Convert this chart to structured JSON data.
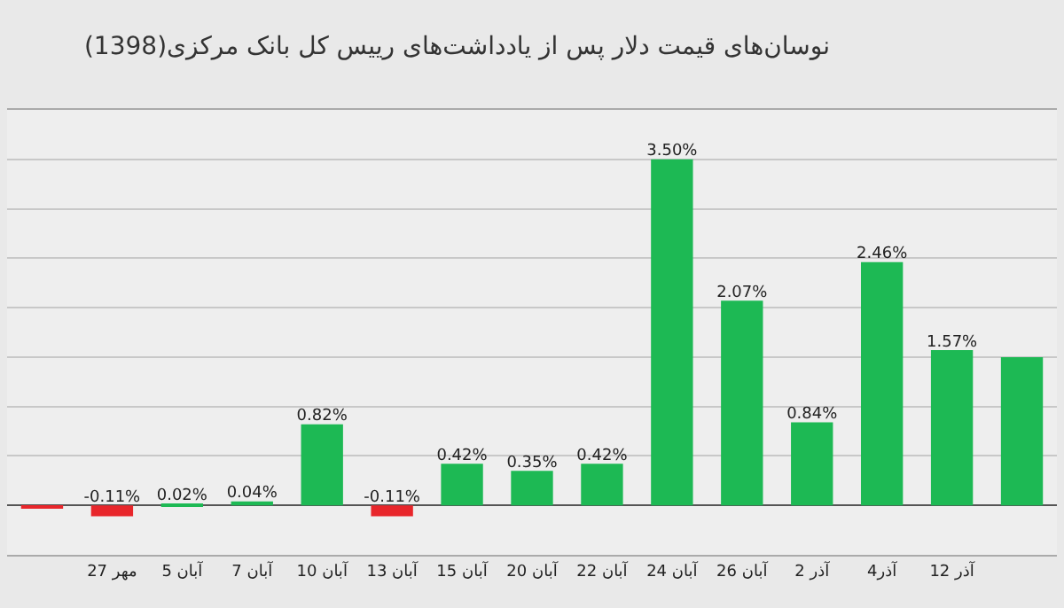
{
  "chart_data": {
    "type": "bar",
    "title": "نوسان‌های قیمت دلار پس از یادداشت‌های رییس کل بانک مرکزی(1398)",
    "categories": [
      null,
      "27 مهر",
      "5 آبان",
      "7 آبان",
      "10 آبان",
      "13 آبان",
      "15 آبان",
      "20 آبان",
      "22 آبان",
      "24 آبان",
      "26 آبان",
      "2 آذر",
      "4آذر",
      "12 آذر",
      null
    ],
    "values": [
      -0.02,
      -0.11,
      0.02,
      0.04,
      0.82,
      -0.11,
      0.42,
      0.35,
      0.42,
      3.5,
      2.07,
      0.84,
      2.46,
      1.57,
      1.5
    ],
    "value_labels": [
      null,
      "-0.11%",
      "0.02%",
      "0.04%",
      "0.82%",
      "-0.11%",
      "0.42%",
      "0.35%",
      "0.42%",
      "3.50%",
      "2.07%",
      "0.84%",
      "2.46%",
      "1.57%",
      null
    ],
    "colors": [
      "#e8262b",
      "#e8262b",
      "#1db954",
      "#1db954",
      "#1db954",
      "#e8262b",
      "#1db954",
      "#1db954",
      "#1db954",
      "#1db954",
      "#1db954",
      "#1db954",
      "#1db954",
      "#1db954",
      "#1db954"
    ],
    "ylim": [
      -0.5,
      4
    ],
    "yticks": [
      {
        "value": -0.5,
        "label": null
      },
      {
        "value": 0,
        "label": null
      },
      {
        "value": 0.5,
        "label": null
      },
      {
        "value": 1,
        "label": null
      },
      {
        "value": 1.5,
        "label": null
      },
      {
        "value": 2,
        "label": null
      },
      {
        "value": 2.5,
        "label": null
      },
      {
        "value": 3,
        "label": null
      },
      {
        "value": 3.5,
        "label": null
      },
      {
        "value": 4,
        "label": null
      }
    ],
    "tick_labels": "x",
    "grid": "y"
  }
}
